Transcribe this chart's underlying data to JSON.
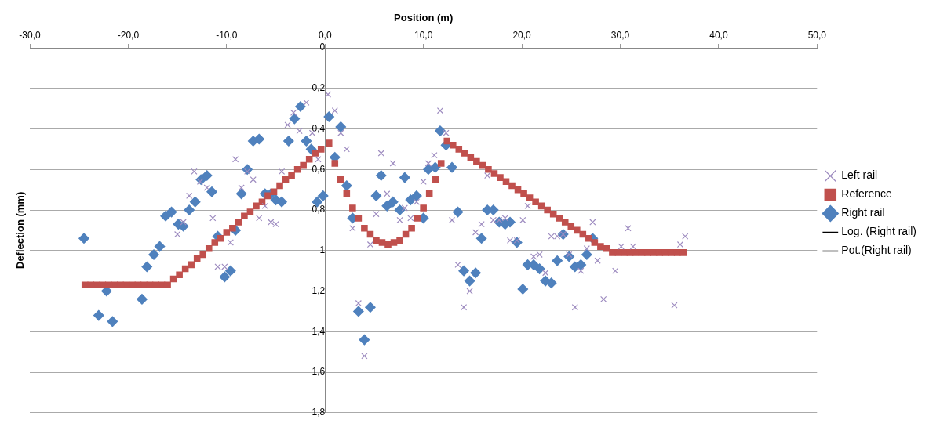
{
  "chart_data": {
    "type": "scatter",
    "xlabel": "Position (m)",
    "ylabel": "Deflection (mm)",
    "xlim": [
      -30,
      50
    ],
    "xticks": [
      {
        "value": -30,
        "label": "-30,0"
      },
      {
        "value": -20,
        "label": "-20,0"
      },
      {
        "value": -10,
        "label": "-10,0"
      },
      {
        "value": 0,
        "label": "0,0"
      },
      {
        "value": 10,
        "label": "10,0"
      },
      {
        "value": 20,
        "label": "20,0"
      },
      {
        "value": 30,
        "label": "30,0"
      },
      {
        "value": 40,
        "label": "40,0"
      },
      {
        "value": 50,
        "label": "50,0"
      }
    ],
    "ylim": [
      1.8,
      0
    ],
    "yticks": [
      0,
      {
        "value": 0.2,
        "label": "0,2"
      },
      {
        "value": 0.4,
        "label": "0,4"
      },
      {
        "value": 0.6,
        "label": "0,6"
      },
      {
        "value": 0.8,
        "label": "0,8"
      },
      {
        "value": 1,
        "label": "1"
      },
      {
        "value": 1.2,
        "label": "1,2"
      },
      {
        "value": 1.4,
        "label": "1,4"
      },
      {
        "value": 1.6,
        "label": "1,6"
      },
      {
        "value": 1.8,
        "label": "1,8"
      }
    ],
    "grid": "y",
    "legend": "right",
    "series": [
      {
        "name": "Left rail",
        "color": "#9e8cc0",
        "marker": "cross",
        "x": [
          -15.0,
          -14.4,
          -13.8,
          -13.3,
          -12.7,
          -12.0,
          -11.4,
          -10.9,
          -10.2,
          -9.6,
          -9.1,
          -8.5,
          -7.9,
          -7.3,
          -6.7,
          -6.1,
          -5.5,
          -5.0,
          -4.4,
          -3.8,
          -3.2,
          -2.6,
          -1.9,
          -1.3,
          -0.7,
          0.3,
          1.0,
          1.6,
          2.2,
          2.8,
          3.4,
          4.0,
          4.6,
          5.2,
          5.7,
          6.3,
          6.9,
          7.6,
          8.1,
          8.7,
          9.3,
          10.0,
          10.5,
          11.1,
          11.7,
          12.3,
          12.9,
          13.5,
          14.1,
          14.7,
          15.3,
          15.9,
          16.5,
          17.1,
          17.7,
          18.3,
          18.8,
          19.5,
          20.1,
          20.6,
          21.2,
          21.8,
          22.4,
          23.0,
          23.6,
          24.2,
          24.8,
          25.4,
          26.0,
          26.6,
          27.2,
          27.7,
          28.3,
          29.5,
          30.1,
          30.8,
          31.3,
          35.5,
          36.1,
          36.6
        ],
        "values": [
          0.92,
          0.86,
          0.73,
          0.61,
          0.66,
          0.69,
          0.84,
          1.08,
          1.08,
          0.96,
          0.55,
          0.69,
          0.61,
          0.65,
          0.84,
          0.78,
          0.86,
          0.87,
          0.61,
          0.38,
          0.32,
          0.41,
          0.27,
          0.42,
          0.55,
          0.23,
          0.31,
          0.42,
          0.5,
          0.89,
          1.26,
          1.52,
          0.97,
          0.82,
          0.52,
          0.72,
          0.57,
          0.85,
          0.79,
          0.84,
          0.76,
          0.66,
          0.57,
          0.53,
          0.31,
          0.42,
          0.85,
          1.07,
          1.28,
          1.2,
          0.91,
          0.87,
          0.63,
          0.85,
          0.85,
          0.84,
          0.95,
          0.95,
          0.85,
          0.78,
          1.03,
          1.02,
          1.11,
          0.93,
          0.93,
          0.92,
          1.02,
          1.28,
          1.1,
          0.99,
          0.86,
          1.05,
          1.24,
          1.1,
          0.98,
          0.89,
          0.98,
          1.27,
          0.97,
          0.93
        ]
      },
      {
        "name": "Reference",
        "color": "#c0504d",
        "marker": "square",
        "x": [
          -24.4,
          -23.8,
          -23.2,
          -22.6,
          -22.0,
          -21.4,
          -20.8,
          -20.2,
          -19.6,
          -19.0,
          -18.4,
          -17.8,
          -17.2,
          -16.6,
          -16.0,
          -15.4,
          -14.8,
          -14.2,
          -13.6,
          -13.0,
          -12.4,
          -11.8,
          -11.2,
          -10.6,
          -10.0,
          -9.4,
          -8.8,
          -8.2,
          -7.6,
          -7.0,
          -6.4,
          -5.8,
          -5.2,
          -4.6,
          -4.0,
          -3.4,
          -2.8,
          -2.2,
          -1.6,
          -1.0,
          -0.4,
          0.4,
          1.0,
          1.6,
          2.2,
          2.8,
          3.4,
          4.0,
          4.6,
          5.2,
          5.8,
          6.4,
          7.0,
          7.6,
          8.2,
          8.8,
          9.4,
          10.0,
          10.6,
          11.2,
          11.8,
          12.4,
          13.0,
          13.6,
          14.2,
          14.8,
          15.4,
          16.0,
          16.6,
          17.2,
          17.8,
          18.4,
          19.0,
          19.6,
          20.2,
          20.8,
          21.4,
          22.0,
          22.6,
          23.2,
          23.8,
          24.4,
          25.0,
          25.6,
          26.2,
          26.8,
          27.4,
          28.0,
          28.6,
          29.2,
          29.8,
          30.4,
          31.0,
          31.6,
          32.2,
          32.8,
          33.4,
          34.0,
          34.6,
          35.2,
          35.8,
          36.4
        ],
        "values": [
          1.17,
          1.17,
          1.17,
          1.17,
          1.17,
          1.17,
          1.17,
          1.17,
          1.17,
          1.17,
          1.17,
          1.17,
          1.17,
          1.17,
          1.17,
          1.14,
          1.12,
          1.09,
          1.07,
          1.04,
          1.02,
          0.99,
          0.96,
          0.94,
          0.91,
          0.89,
          0.86,
          0.83,
          0.81,
          0.78,
          0.76,
          0.73,
          0.71,
          0.68,
          0.65,
          0.63,
          0.6,
          0.58,
          0.55,
          0.52,
          0.5,
          0.47,
          0.57,
          0.65,
          0.72,
          0.79,
          0.84,
          0.89,
          0.92,
          0.95,
          0.96,
          0.97,
          0.96,
          0.95,
          0.92,
          0.89,
          0.84,
          0.79,
          0.72,
          0.65,
          0.57,
          0.46,
          0.48,
          0.5,
          0.52,
          0.54,
          0.56,
          0.58,
          0.6,
          0.62,
          0.64,
          0.66,
          0.68,
          0.7,
          0.72,
          0.74,
          0.76,
          0.78,
          0.8,
          0.82,
          0.84,
          0.86,
          0.88,
          0.9,
          0.92,
          0.94,
          0.96,
          0.98,
          0.99,
          1.01,
          1.01,
          1.01,
          1.01,
          1.01,
          1.01,
          1.01,
          1.01,
          1.01,
          1.01,
          1.01,
          1.01,
          1.01
        ]
      },
      {
        "name": "Right rail",
        "color": "#4f81bd",
        "marker": "diamond",
        "x": [
          -24.5,
          -23.0,
          -22.2,
          -21.6,
          -18.6,
          -18.1,
          -17.4,
          -16.8,
          -16.2,
          -15.6,
          -14.9,
          -14.4,
          -13.8,
          -13.2,
          -12.6,
          -12.0,
          -11.5,
          -10.9,
          -10.2,
          -9.6,
          -9.1,
          -8.5,
          -7.9,
          -7.3,
          -6.7,
          -6.1,
          -5.5,
          -5.0,
          -4.4,
          -3.7,
          -3.1,
          -2.5,
          -1.9,
          -1.4,
          -0.8,
          -0.2,
          0.4,
          1.0,
          1.6,
          2.2,
          2.8,
          3.4,
          4.0,
          4.6,
          5.2,
          5.7,
          6.3,
          6.9,
          7.6,
          8.1,
          8.7,
          9.3,
          10.0,
          10.5,
          11.2,
          11.7,
          12.3,
          12.9,
          13.5,
          14.1,
          14.7,
          15.3,
          15.9,
          16.5,
          17.1,
          17.7,
          18.3,
          18.8,
          19.5,
          20.1,
          20.6,
          21.2,
          21.8,
          22.4,
          23.0,
          23.6,
          24.2,
          24.8,
          25.4,
          26.0,
          26.6,
          27.2
        ],
        "values": [
          0.94,
          1.32,
          1.2,
          1.35,
          1.24,
          1.08,
          1.02,
          0.98,
          0.83,
          0.81,
          0.87,
          0.88,
          0.8,
          0.76,
          0.65,
          0.63,
          0.71,
          0.93,
          1.13,
          1.1,
          0.9,
          0.72,
          0.6,
          0.46,
          0.45,
          0.72,
          0.72,
          0.75,
          0.76,
          0.46,
          0.35,
          0.29,
          0.46,
          0.5,
          0.76,
          0.73,
          0.34,
          0.54,
          0.39,
          0.68,
          0.84,
          1.3,
          1.44,
          1.28,
          0.73,
          0.63,
          0.78,
          0.76,
          0.8,
          0.64,
          0.75,
          0.73,
          0.84,
          0.6,
          0.59,
          0.41,
          0.48,
          0.59,
          0.81,
          1.1,
          1.15,
          1.11,
          0.94,
          0.8,
          0.8,
          0.86,
          0.87,
          0.86,
          0.96,
          1.19,
          1.07,
          1.07,
          1.09,
          1.15,
          1.16,
          1.05,
          0.92,
          1.03,
          1.08,
          1.07,
          1.02,
          0.94
        ]
      },
      {
        "name": "Log. (Right rail)",
        "type": "line",
        "color": "#000000",
        "marker": "none"
      },
      {
        "name": "Pot.(Right rail)",
        "type": "line",
        "color": "#000000",
        "marker": "none"
      }
    ]
  }
}
